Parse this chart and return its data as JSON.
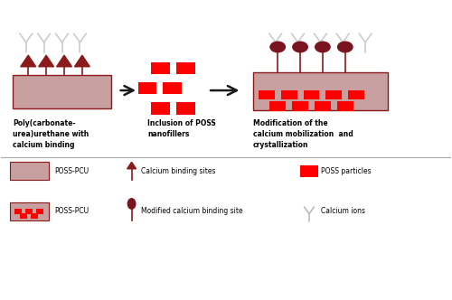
{
  "bg_color": "#ffffff",
  "pcu_color": "#c9a0a0",
  "poss_red": "#ff0000",
  "poss_dark": "#8b1a1a",
  "arrow_color": "#1a1a1a",
  "border_color": "#8b1a1a",
  "text_color": "#000000",
  "label1": "Poly(carbonate-\nurea)urethane with\ncalcium binding",
  "label2": "Inclusion of POSS\nnanofillers",
  "label3": "Modification of the\ncalcium mobilization  and\ncrystallization",
  "legend1": "POSS-PCU",
  "legend2": "POSS-PCU",
  "leg_label1": "Calcium binding sites",
  "leg_label2": "Modified calcium binding site",
  "leg_label3": "POSS particles",
  "leg_label4": "Calcium ions"
}
